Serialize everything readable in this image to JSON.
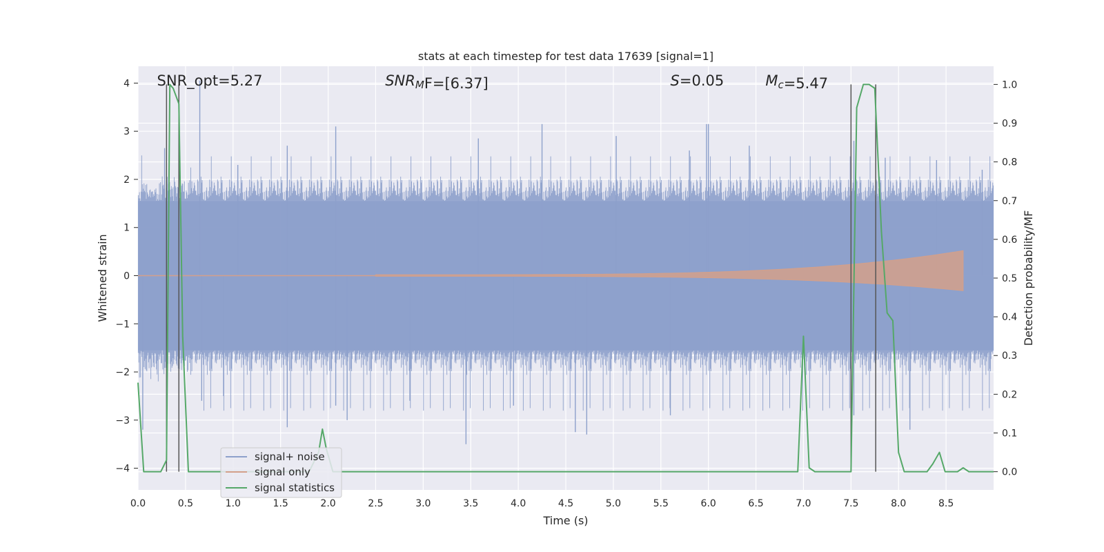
{
  "chart_data": {
    "type": "line",
    "title": "stats at each timestep for test data 17639 [signal=1]",
    "xlabel": "Time (s)",
    "ylabel_left": "Whitened strain",
    "ylabel_right": "Detection probability/MF",
    "xlim": [
      0,
      9.0
    ],
    "ylim_left": [
      -4.45,
      4.35
    ],
    "ylim_right": [
      -0.047,
      1.047
    ],
    "x_ticks": [
      "0.0",
      "0.5",
      "1.0",
      "1.5",
      "2.0",
      "2.5",
      "3.0",
      "3.5",
      "4.0",
      "4.5",
      "5.0",
      "5.5",
      "6.0",
      "6.5",
      "7.0",
      "7.5",
      "8.0",
      "8.5"
    ],
    "y_left_ticks": [
      "−4",
      "−3",
      "−2",
      "−1",
      "0",
      "1",
      "2",
      "3",
      "4"
    ],
    "y_right_ticks": [
      "0.0",
      "0.1",
      "0.2",
      "0.3",
      "0.4",
      "0.5",
      "0.6",
      "0.7",
      "0.8",
      "0.9",
      "1.0"
    ],
    "annotations": [
      {
        "text": "SNR_opt=5.27",
        "x": 0.2
      },
      {
        "text_parts": [
          {
            "t": "SNR",
            "italic": true
          },
          {
            "t": "M",
            "italic": true,
            "sub": true
          },
          {
            "t": "F=[6.37]",
            "italic": false,
            "mixed": true
          }
        ],
        "x": 2.6
      },
      {
        "text_parts": [
          {
            "t": "S",
            "italic": true
          },
          {
            "t": "=0.05",
            "italic": false
          }
        ],
        "x": 5.6
      },
      {
        "text_parts": [
          {
            "t": "M",
            "italic": true
          },
          {
            "t": "c",
            "italic": true,
            "sub": true
          },
          {
            "t": "=5.47",
            "italic": false
          }
        ],
        "x": 6.6
      }
    ],
    "vertical_lines": [
      0.3,
      0.43,
      7.5,
      7.76
    ],
    "grid": true,
    "legend_position": "lower-left",
    "series": [
      {
        "name": "signal+ noise",
        "color": "#8da0cb",
        "kind": "noise-band",
        "core_amplitude": 1.55,
        "extreme_spikes": [
          [
            0.28,
            2.65
          ],
          [
            0.65,
            4.05
          ],
          [
            0.67,
            -2.6
          ],
          [
            1.05,
            2.3
          ],
          [
            1.57,
            -3.15
          ],
          [
            1.57,
            2.7
          ],
          [
            2.08,
            3.1
          ],
          [
            2.2,
            -3.0
          ],
          [
            2.08,
            -2.7
          ],
          [
            3.45,
            -3.5
          ],
          [
            3.58,
            2.85
          ],
          [
            4.25,
            3.15
          ],
          [
            4.6,
            -3.25
          ],
          [
            4.72,
            -3.3
          ],
          [
            5.03,
            2.9
          ],
          [
            5.6,
            -2.9
          ],
          [
            5.8,
            2.6
          ],
          [
            5.98,
            3.15
          ],
          [
            6.0,
            3.15
          ],
          [
            6.43,
            2.7
          ],
          [
            7.53,
            2.8
          ],
          [
            7.53,
            -2.9
          ],
          [
            7.86,
            2.45
          ],
          [
            8.12,
            -3.2
          ],
          [
            8.4,
            2.4
          ],
          [
            8.88,
            2.2
          ],
          [
            0.05,
            -3.2
          ],
          [
            0.9,
            -2.5
          ],
          [
            2.86,
            -2.6
          ],
          [
            3.95,
            -2.7
          ]
        ]
      },
      {
        "name": "signal only",
        "color": "#d4a08a",
        "kind": "chirp",
        "amplitude_start": 0.02,
        "amplitude_end": 0.52,
        "x_start": 2.5,
        "x_end": 8.68
      },
      {
        "name": "signal statistics",
        "color": "#55a868",
        "axis": "right",
        "x": [
          0.0,
          0.06,
          0.12,
          0.18,
          0.24,
          0.3,
          0.335,
          0.37,
          0.43,
          0.47,
          0.53,
          0.6,
          0.8,
          1.0,
          1.2,
          1.4,
          1.6,
          1.8,
          1.9,
          1.94,
          1.98,
          2.05,
          2.12,
          2.5,
          3.0,
          3.5,
          4.0,
          4.5,
          5.0,
          5.5,
          6.0,
          6.5,
          6.94,
          7.0,
          7.06,
          7.12,
          7.3,
          7.49,
          7.5,
          7.56,
          7.63,
          7.69,
          7.75,
          7.82,
          7.88,
          7.94,
          8.0,
          8.06,
          8.12,
          8.2,
          8.3,
          8.36,
          8.43,
          8.49,
          8.55,
          8.62,
          8.68,
          8.74,
          8.8,
          8.9,
          9.0
        ],
        "y": [
          0.23,
          0.0,
          0.0,
          0.0,
          0.0,
          0.03,
          1.0,
          0.99,
          0.95,
          0.35,
          0.0,
          0.0,
          0.0,
          0.0,
          0.0,
          0.0,
          0.0,
          0.0,
          0.05,
          0.11,
          0.06,
          0.0,
          0.0,
          0.0,
          0.0,
          0.0,
          0.0,
          0.0,
          0.0,
          0.0,
          0.0,
          0.0,
          0.0,
          0.35,
          0.01,
          0.0,
          0.0,
          0.0,
          0.0,
          0.94,
          1.0,
          1.0,
          0.99,
          0.62,
          0.41,
          0.39,
          0.05,
          0.0,
          0.0,
          0.0,
          0.0,
          0.02,
          0.05,
          0.0,
          0.0,
          0.0,
          0.01,
          0.0,
          0.0,
          0.0,
          0.0
        ]
      }
    ]
  }
}
